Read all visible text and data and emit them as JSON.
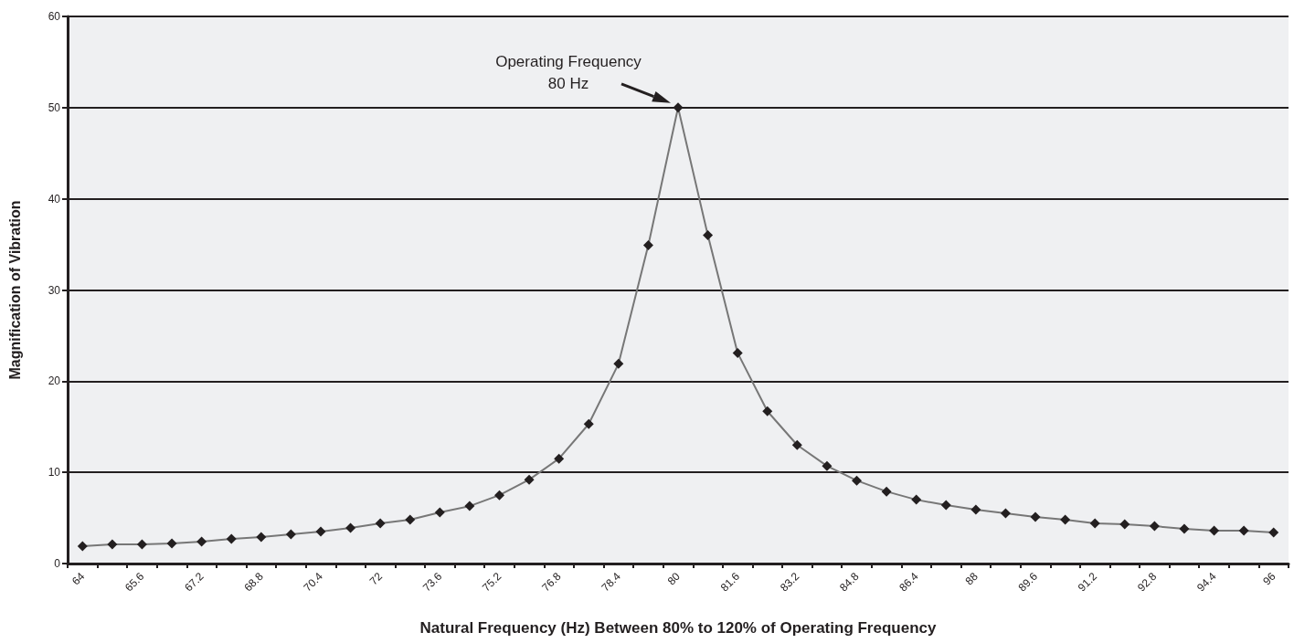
{
  "chart_data": {
    "type": "line",
    "xlabel": "Natural Frequency (Hz) Between 80% to 120% of Operating Frequency",
    "ylabel": "Magnification of Vibration",
    "categories": [
      "64",
      null,
      "65.6",
      null,
      "67.2",
      null,
      "68.8",
      null,
      "70.4",
      null,
      "72",
      null,
      "73.6",
      null,
      "75.2",
      null,
      "76.8",
      null,
      "78.4",
      null,
      "80",
      null,
      "81.6",
      null,
      "83.2",
      null,
      "84.8",
      null,
      "86.4",
      null,
      "88",
      null,
      "89.6",
      null,
      "91.2",
      null,
      "92.8",
      null,
      "94.4",
      null,
      "96"
    ],
    "series": [
      {
        "color": "#777777",
        "values": [
          1.9,
          2.1,
          2.1,
          2.2,
          2.4,
          2.7,
          2.9,
          3.2,
          3.5,
          3.9,
          4.4,
          4.8,
          5.6,
          6.3,
          7.5,
          9.2,
          11.5,
          15.3,
          21.9,
          34.9,
          50,
          36.0,
          23.1,
          16.7,
          13.0,
          10.7,
          9.1,
          7.9,
          7.0,
          6.4,
          5.9,
          5.5,
          5.1,
          4.8,
          4.4,
          4.3,
          4.1,
          3.8,
          3.6,
          3.6,
          3.4
        ]
      }
    ],
    "marker": "diamond",
    "ylim": [
      0,
      60
    ],
    "yticks": [
      0,
      10,
      20,
      30,
      40,
      50,
      60
    ],
    "grid": "y",
    "annotations": [
      {
        "text": "Operating Frequency\n80 Hz",
        "x": "80",
        "y": 50
      }
    ]
  }
}
